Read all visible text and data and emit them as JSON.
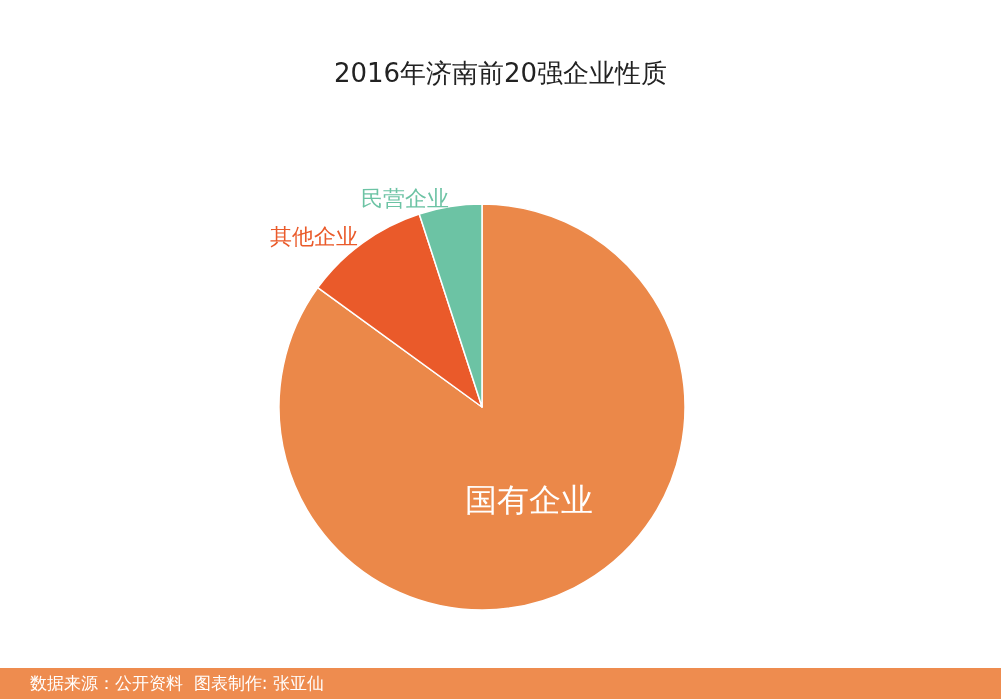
{
  "chart_data": {
    "type": "pie",
    "title": "2016年济南前20强企业性质",
    "categories": [
      "国有企业",
      "其他企业",
      "民营企业"
    ],
    "values": [
      85,
      10,
      5
    ],
    "colors": [
      "#eb8849",
      "#ea5a2a",
      "#6cc3a4"
    ],
    "annotations": [
      "数据来源：公开资料  图表制作: 张亚仙"
    ]
  }
}
